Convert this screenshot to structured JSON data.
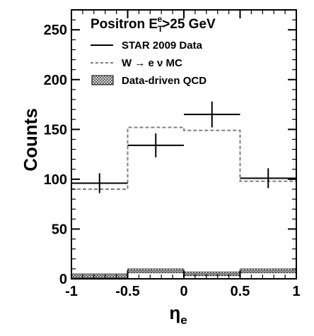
{
  "chart_data": {
    "type": "histogram",
    "title": {
      "main": "Positron E",
      "sub": "T",
      "sup": "e",
      "rest": ">25 GeV"
    },
    "xlabel": {
      "main": "η",
      "sub": "e"
    },
    "ylabel": "Counts",
    "xlim": [
      -1,
      1
    ],
    "ylim": [
      0,
      270
    ],
    "xticks": [
      -1,
      -0.5,
      0,
      0.5,
      1
    ],
    "xtick_labels": [
      "-1",
      "-0.5",
      "0",
      "0.5",
      "1"
    ],
    "yticks": [
      0,
      50,
      100,
      150,
      200,
      250
    ],
    "ytick_labels": [
      "0",
      "50",
      "100",
      "150",
      "200",
      "250"
    ],
    "bin_edges": [
      -1,
      -0.5,
      0,
      0.5,
      1
    ],
    "series": [
      {
        "name": "STAR 2009 Data",
        "style": "points-with-errors",
        "color": "#000000",
        "x": [
          -0.75,
          -0.25,
          0.25,
          0.75
        ],
        "y": [
          96,
          134,
          165,
          101
        ],
        "yerr": [
          10,
          12,
          13,
          10
        ]
      },
      {
        "name": "W → e ν MC",
        "style": "dashed-step",
        "color": "#808080",
        "values": [
          90,
          152,
          149,
          98
        ]
      },
      {
        "name": "Data-driven QCD",
        "style": "hatched-band",
        "color": "#666666",
        "values": [
          3,
          8,
          5,
          8
        ],
        "band_half_width": 2
      }
    ],
    "legend_placement": "top-left",
    "grid": false
  }
}
